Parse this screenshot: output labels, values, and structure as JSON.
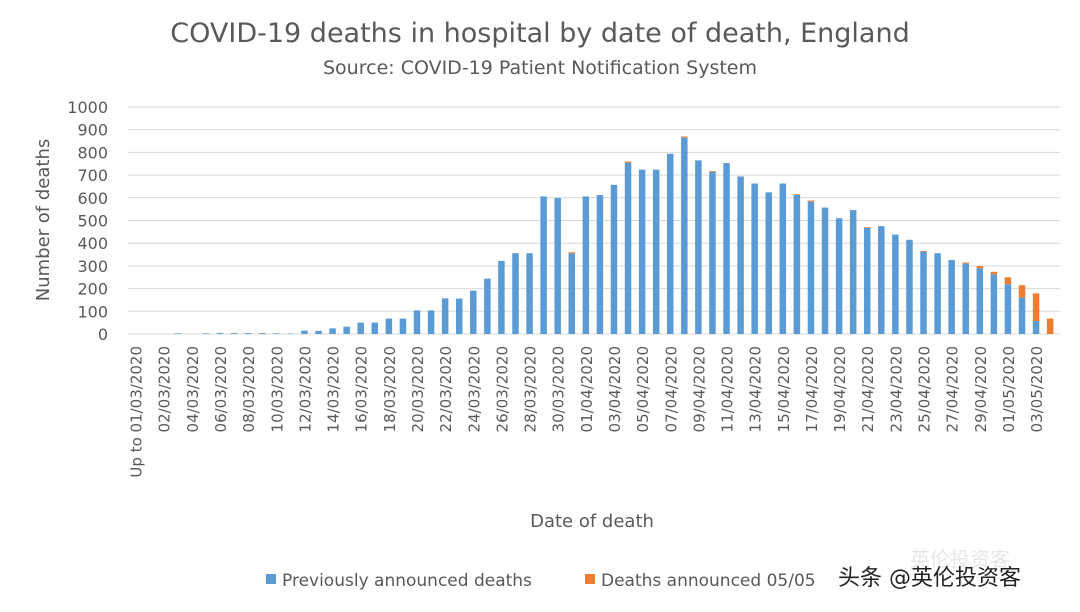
{
  "chart_data": {
    "type": "bar",
    "stacked": true,
    "title": "COVID-19 deaths in hospital by date of death, England",
    "subtitle": "Source: COVID-19 Patient Notification System",
    "xlabel": "Date of death",
    "ylabel": "Number of deaths",
    "ylim": [
      0,
      1000
    ],
    "yticks": [
      0,
      100,
      200,
      300,
      400,
      500,
      600,
      700,
      800,
      900,
      1000
    ],
    "grid": true,
    "legend_placement": "bottom",
    "x_tick_labels": [
      "Up to 01/03/2020",
      "02/03/2020",
      "04/03/2020",
      "06/03/2020",
      "08/03/2020",
      "10/03/2020",
      "12/03/2020",
      "14/03/2020",
      "16/03/2020",
      "18/03/2020",
      "20/03/2020",
      "22/03/2020",
      "24/03/2020",
      "26/03/2020",
      "28/03/2020",
      "30/03/2020",
      "01/04/2020",
      "03/04/2020",
      "05/04/2020",
      "07/04/2020",
      "09/04/2020",
      "11/04/2020",
      "13/04/2020",
      "15/04/2020",
      "17/04/2020",
      "19/04/2020",
      "21/04/2020",
      "23/04/2020",
      "25/04/2020",
      "27/04/2020",
      "29/04/2020",
      "01/05/2020",
      "03/05/2020"
    ],
    "series": [
      {
        "name": "Previously announced deaths",
        "color": "#5b9bd5",
        "values": [
          0,
          0,
          0,
          3,
          0,
          3,
          4,
          4,
          4,
          4,
          3,
          2,
          15,
          14,
          25,
          32,
          50,
          50,
          68,
          68,
          104,
          104,
          157,
          156,
          191,
          244,
          322,
          356,
          356,
          606,
          599,
          355,
          606,
          612,
          657,
          755,
          724,
          724,
          794,
          865,
          765,
          715,
          753,
          694,
          663,
          624,
          663,
          613,
          583,
          557,
          510,
          546,
          468,
          475,
          438,
          415,
          363,
          356,
          326,
          310,
          290,
          263,
          219,
          160,
          57,
          0
        ]
      },
      {
        "name": "Deaths announced 05/05",
        "color": "#ed7d31",
        "values": [
          0,
          0,
          0,
          0,
          0,
          0,
          0,
          0,
          0,
          0,
          0,
          0,
          0,
          0,
          0,
          0,
          0,
          0,
          0,
          0,
          0,
          0,
          0,
          0,
          0,
          0,
          0,
          0,
          0,
          0,
          0,
          5,
          0,
          0,
          0,
          5,
          0,
          0,
          0,
          5,
          0,
          3,
          0,
          0,
          0,
          0,
          0,
          3,
          5,
          0,
          0,
          0,
          3,
          0,
          0,
          0,
          3,
          0,
          0,
          5,
          10,
          11,
          31,
          55,
          122,
          68
        ]
      }
    ]
  },
  "watermark": {
    "faint_text": "英伦投资客",
    "text": "头条 @英伦投资客"
  }
}
